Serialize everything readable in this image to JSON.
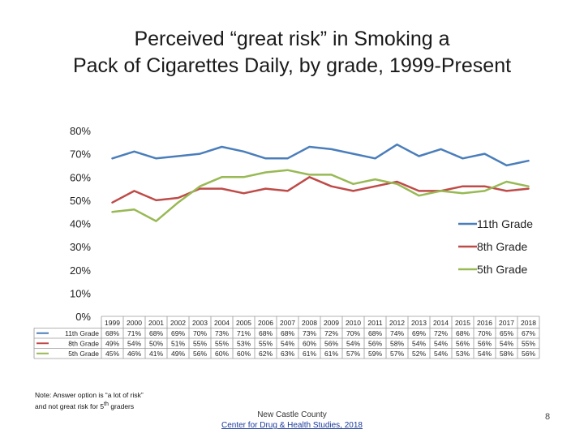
{
  "slide": {
    "title_line1": "Perceived “great risk” in Smoking a",
    "title_line2": "Pack of Cigarettes Daily, by grade, 1999-Present",
    "note_line1": "Note: Answer option is “a lot of risk”",
    "note_line2_pre": "and not great risk for 5",
    "note_sup": "th",
    "note_line2_post": " graders",
    "footer_line1": "New Castle County",
    "footer_link": "Center for Drug & Health Studies, 2018",
    "page_number": "8"
  },
  "chart_data": {
    "type": "line",
    "title": "Perceived “great risk” in Smoking a Pack of Cigarettes Daily, by grade, 1999-Present",
    "categories": [
      "1999",
      "2000",
      "2001",
      "2002",
      "2003",
      "2004",
      "2005",
      "2006",
      "2007",
      "2008",
      "2009",
      "2010",
      "2011",
      "2012",
      "2013",
      "2014",
      "2015",
      "2016",
      "2017",
      "2018"
    ],
    "y_ticks": [
      "0%",
      "10%",
      "20%",
      "30%",
      "40%",
      "50%",
      "60%",
      "70%",
      "80%"
    ],
    "ylim": [
      0,
      80
    ],
    "legend_position": "right",
    "series": [
      {
        "name": "11th Grade",
        "color": "#4a7ebb",
        "values": [
          68,
          71,
          68,
          69,
          70,
          73,
          71,
          68,
          68,
          73,
          72,
          70,
          68,
          74,
          69,
          72,
          68,
          70,
          65,
          67
        ],
        "labels": [
          "68%",
          "71%",
          "68%",
          "69%",
          "70%",
          "73%",
          "71%",
          "68%",
          "68%",
          "73%",
          "72%",
          "70%",
          "68%",
          "74%",
          "69%",
          "72%",
          "68%",
          "70%",
          "65%",
          "67%"
        ]
      },
      {
        "name": "8th Grade",
        "color": "#be4b48",
        "values": [
          49,
          54,
          50,
          51,
          55,
          55,
          53,
          55,
          54,
          60,
          56,
          54,
          56,
          58,
          54,
          54,
          56,
          56,
          54,
          55
        ],
        "labels": [
          "49%",
          "54%",
          "50%",
          "51%",
          "55%",
          "55%",
          "53%",
          "55%",
          "54%",
          "60%",
          "56%",
          "54%",
          "56%",
          "58%",
          "54%",
          "54%",
          "56%",
          "56%",
          "54%",
          "55%"
        ]
      },
      {
        "name": "5th Grade",
        "color": "#98b954",
        "values": [
          45,
          46,
          41,
          49,
          56,
          60,
          60,
          62,
          63,
          61,
          61,
          57,
          59,
          57,
          52,
          54,
          53,
          54,
          58,
          56
        ],
        "labels": [
          "45%",
          "46%",
          "41%",
          "49%",
          "56%",
          "60%",
          "60%",
          "62%",
          "63%",
          "61%",
          "61%",
          "57%",
          "59%",
          "57%",
          "52%",
          "54%",
          "53%",
          "54%",
          "58%",
          "56%"
        ]
      }
    ]
  }
}
